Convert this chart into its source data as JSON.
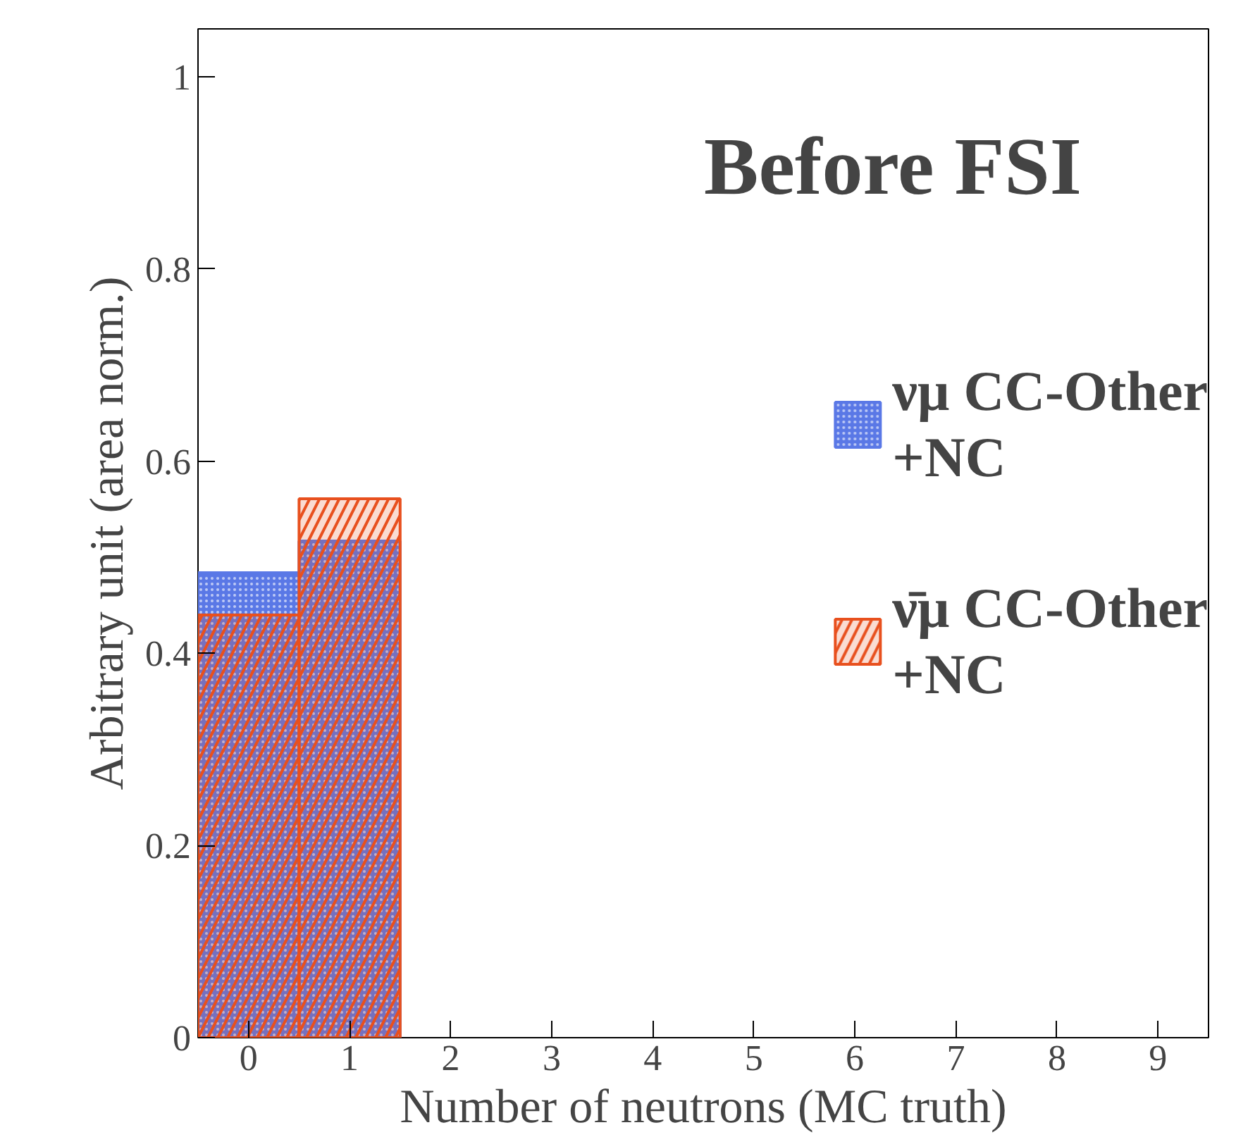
{
  "chart_data": {
    "type": "histogram",
    "title": "Before FSI",
    "xlabel": "Number of neutrons (MC truth)",
    "ylabel": "Arbitrary unit (area norm.)",
    "bins": [
      -0.5,
      0.5,
      1.5,
      2.5,
      3.5,
      4.5,
      5.5,
      6.5,
      7.5,
      8.5,
      9.5
    ],
    "series": [
      {
        "name": "νμ CC-Other +NC",
        "color": "#5a78e6",
        "values": [
          0.484,
          0.517,
          0,
          0,
          0,
          0,
          0,
          0,
          0,
          0
        ]
      },
      {
        "name": "ν̄μ CC-Other +NC",
        "color": "#e8501e",
        "values": [
          0.44,
          0.561,
          0,
          0,
          0,
          0,
          0,
          0,
          0,
          0
        ]
      }
    ],
    "xlim": [
      -0.5,
      9.5
    ],
    "ylim": [
      0,
      1.05
    ],
    "xticks": [
      0,
      1,
      2,
      3,
      4,
      5,
      6,
      7,
      8,
      9
    ],
    "yticks": [
      0,
      0.2,
      0.4,
      0.6,
      0.8,
      1
    ],
    "grid": false,
    "legend": "right"
  }
}
